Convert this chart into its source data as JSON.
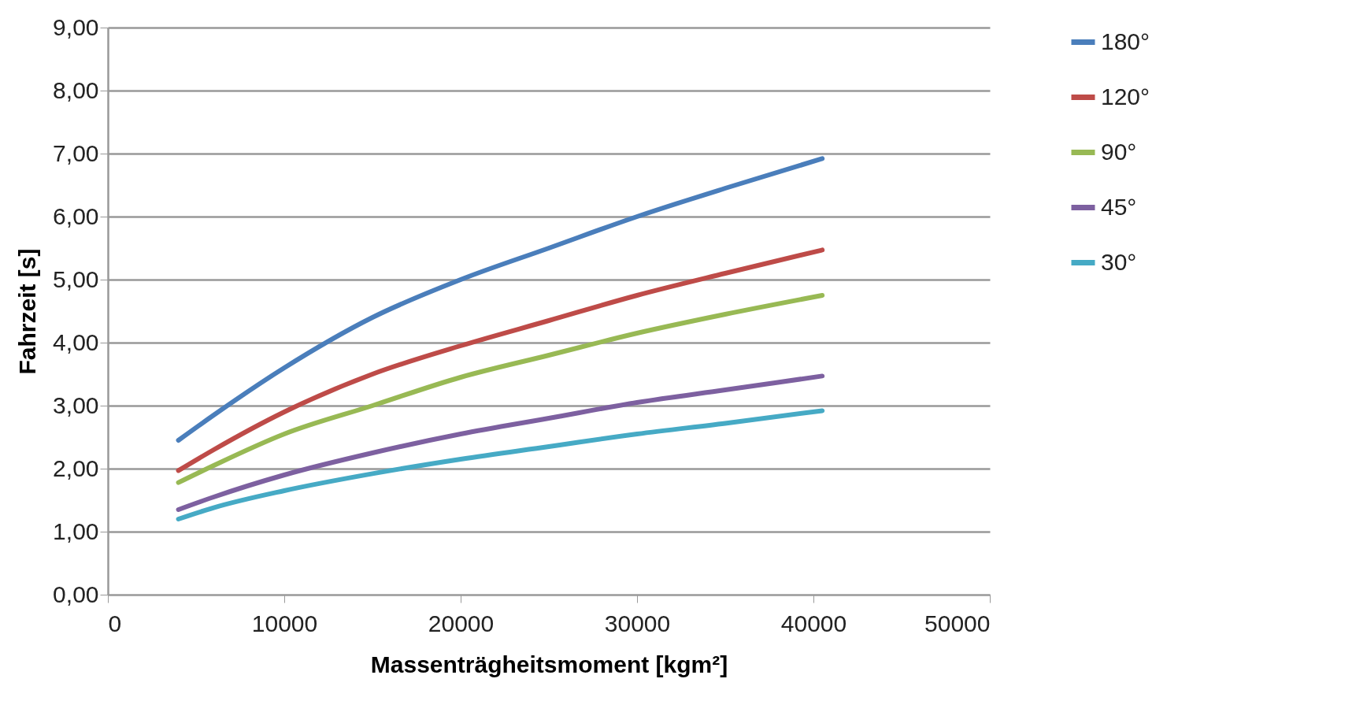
{
  "chart_data": {
    "type": "line",
    "xlabel": "Massenträgheitsmoment [kgm²]",
    "ylabel": "Fahrzeit [s]",
    "x": [
      4000,
      6000,
      10000,
      15000,
      20000,
      25000,
      30000,
      35000,
      40500
    ],
    "xlim": [
      0,
      50000
    ],
    "xticks": [
      0,
      10000,
      20000,
      30000,
      40000,
      50000
    ],
    "ylim": [
      0,
      9
    ],
    "yticks": [
      {
        "value": 0,
        "label": "0,00"
      },
      {
        "value": 1,
        "label": "1,00"
      },
      {
        "value": 2,
        "label": "2,00"
      },
      {
        "value": 3,
        "label": "3,00"
      },
      {
        "value": 4,
        "label": "4,00"
      },
      {
        "value": 5,
        "label": "5,00"
      },
      {
        "value": 6,
        "label": "6,00"
      },
      {
        "value": 7,
        "label": "7,00"
      },
      {
        "value": 8,
        "label": "8,00"
      },
      {
        "value": 9,
        "label": "9,00"
      }
    ],
    "grid": "y",
    "legend": "right",
    "marker": "none",
    "series": [
      {
        "name": "180°",
        "color": "#4a7ebb",
        "values": [
          2.45,
          2.85,
          3.6,
          4.4,
          5.0,
          5.5,
          6.0,
          6.45,
          6.92
        ]
      },
      {
        "name": "120°",
        "color": "#be4b48",
        "values": [
          1.97,
          2.3,
          2.9,
          3.5,
          3.95,
          4.35,
          4.75,
          5.1,
          5.47
        ]
      },
      {
        "name": "90°",
        "color": "#98b954",
        "values": [
          1.78,
          2.05,
          2.55,
          3.0,
          3.45,
          3.8,
          4.15,
          4.45,
          4.75
        ]
      },
      {
        "name": "45°",
        "color": "#7d60a0",
        "values": [
          1.35,
          1.55,
          1.9,
          2.25,
          2.55,
          2.8,
          3.05,
          3.25,
          3.47
        ]
      },
      {
        "name": "30°",
        "color": "#46aac5",
        "values": [
          1.2,
          1.38,
          1.65,
          1.92,
          2.15,
          2.35,
          2.55,
          2.72,
          2.92
        ]
      }
    ]
  }
}
